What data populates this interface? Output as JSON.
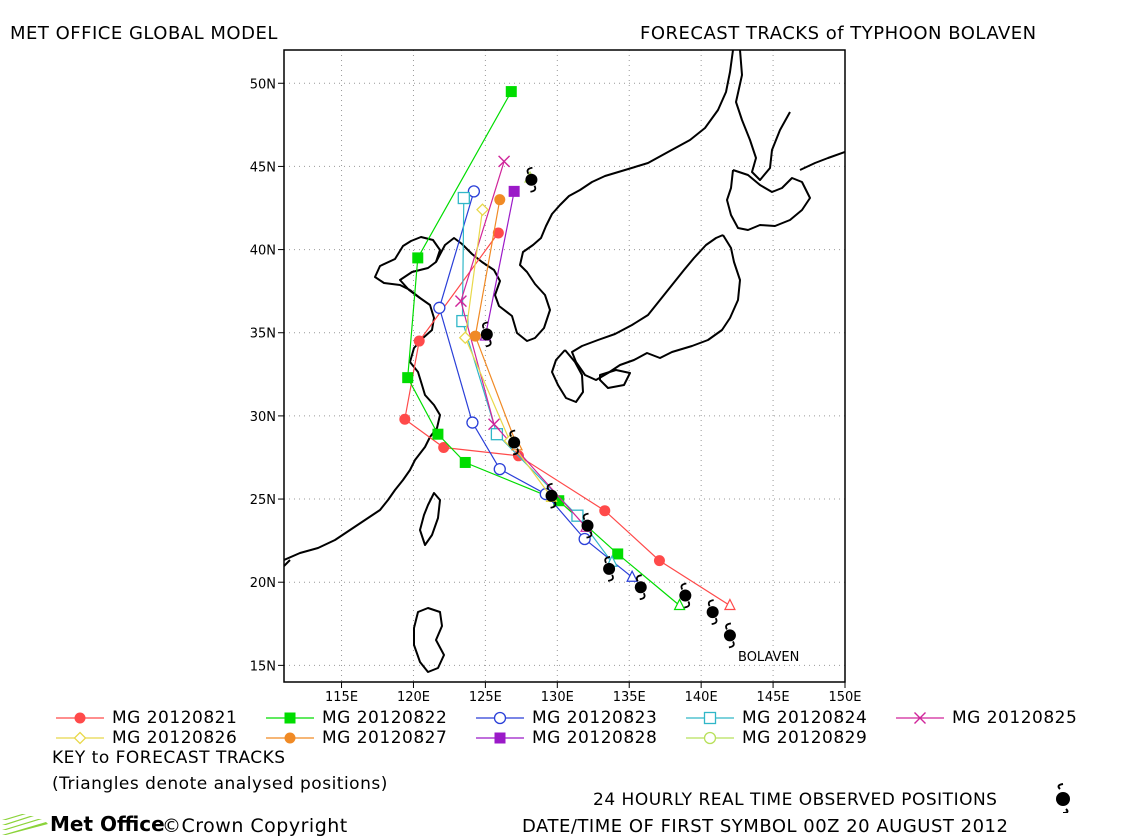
{
  "header": {
    "left_title": "MET OFFICE GLOBAL MODEL",
    "right_title": "FORECAST TRACKS of TYPHOON BOLAVEN"
  },
  "map": {
    "lon_range": [
      111,
      150
    ],
    "lat_range": [
      14,
      52
    ],
    "lon_ticks": [
      "115E",
      "120E",
      "125E",
      "130E",
      "135E",
      "140E",
      "145E",
      "150E"
    ],
    "lat_ticks": [
      "15N",
      "20N",
      "25N",
      "30N",
      "35N",
      "40N",
      "45N",
      "50N"
    ],
    "storm_label": "BOLAVEN",
    "observed_positions": [
      [
        142.0,
        16.8
      ],
      [
        140.8,
        18.2
      ],
      [
        138.9,
        19.2
      ],
      [
        135.8,
        19.7
      ],
      [
        133.6,
        20.8
      ],
      [
        132.1,
        23.4
      ],
      [
        129.6,
        25.2
      ],
      [
        127.0,
        28.4
      ],
      [
        125.1,
        34.9
      ],
      [
        128.2,
        44.2
      ]
    ]
  },
  "legend": {
    "items": [
      {
        "label": "MG 20120821",
        "color": "#ff4a4a",
        "marker": "filled-circle"
      },
      {
        "label": "MG 20120822",
        "color": "#00dd00",
        "marker": "filled-square"
      },
      {
        "label": "MG 20120823",
        "color": "#2a3fd8",
        "marker": "open-circle"
      },
      {
        "label": "MG 20120824",
        "color": "#30b7c8",
        "marker": "open-square"
      },
      {
        "label": "MG 20120825",
        "color": "#d0259a",
        "marker": "cross"
      },
      {
        "label": "MG 20120826",
        "color": "#e8d84a",
        "marker": "open-diamond"
      },
      {
        "label": "MG 20120827",
        "color": "#f08a25",
        "marker": "filled-circle"
      },
      {
        "label": "MG 20120828",
        "color": "#9b19c8",
        "marker": "filled-square"
      },
      {
        "label": "MG 20120829",
        "color": "#b8e05a",
        "marker": "open-circle"
      }
    ],
    "key_title": "KEY to FORECAST TRACKS",
    "note": "(Triangles denote analysed positions)"
  },
  "footer": {
    "observed_label": "24 HOURLY REAL TIME OBSERVED POSITIONS",
    "datetime_label": "DATE/TIME OF FIRST SYMBOL 00Z 20 AUGUST 2012",
    "logo_text": "Met Office",
    "copyright": "©Crown Copyright"
  },
  "tracks": [
    {
      "name": "MG 20120821",
      "color": "#ff4a4a",
      "marker": "filled-circle",
      "points": [
        [
          142.0,
          18.6
        ],
        [
          137.1,
          21.3
        ],
        [
          133.3,
          24.3
        ],
        [
          127.3,
          27.6
        ],
        [
          122.1,
          28.1
        ],
        [
          119.4,
          29.8
        ],
        [
          120.4,
          34.5
        ],
        [
          125.9,
          41.0
        ]
      ]
    },
    {
      "name": "MG 20120822",
      "color": "#00dd00",
      "marker": "filled-square",
      "points": [
        [
          138.5,
          18.6
        ],
        [
          134.2,
          21.7
        ],
        [
          130.1,
          24.9
        ],
        [
          123.6,
          27.2
        ],
        [
          121.7,
          28.9
        ],
        [
          119.6,
          32.3
        ],
        [
          120.3,
          39.5
        ],
        [
          126.8,
          49.5
        ]
      ]
    },
    {
      "name": "MG 20120823",
      "color": "#2a3fd8",
      "marker": "open-circle",
      "points": [
        [
          135.2,
          20.3
        ],
        [
          131.9,
          22.6
        ],
        [
          129.2,
          25.3
        ],
        [
          126.0,
          26.8
        ],
        [
          124.1,
          29.6
        ],
        [
          121.8,
          36.5
        ],
        [
          124.2,
          43.5
        ]
      ]
    },
    {
      "name": "MG 20120824",
      "color": "#30b7c8",
      "marker": "open-square",
      "points": [
        [
          133.8,
          21.2
        ],
        [
          131.4,
          24.0
        ],
        [
          125.8,
          28.9
        ],
        [
          123.4,
          35.7
        ],
        [
          123.5,
          43.1
        ]
      ]
    },
    {
      "name": "MG 20120825",
      "color": "#d0259a",
      "marker": "cross",
      "points": [
        [
          132.0,
          23.3
        ],
        [
          125.6,
          29.5
        ],
        [
          123.3,
          36.9
        ],
        [
          126.3,
          45.3
        ]
      ]
    },
    {
      "name": "MG 20120826",
      "color": "#e8d84a",
      "marker": "open-diamond",
      "points": [
        [
          129.6,
          25.1
        ],
        [
          126.7,
          28.5
        ],
        [
          123.6,
          34.7
        ],
        [
          124.8,
          42.4
        ]
      ]
    },
    {
      "name": "MG 20120827",
      "color": "#f08a25",
      "marker": "filled-circle",
      "points": [
        [
          127.2,
          28.2
        ],
        [
          124.3,
          34.8
        ],
        [
          126.0,
          43.0
        ]
      ]
    },
    {
      "name": "MG 20120828",
      "color": "#9b19c8",
      "marker": "filled-square",
      "points": [
        [
          125.0,
          34.8
        ],
        [
          127.0,
          43.5
        ]
      ]
    },
    {
      "name": "MG 20120829",
      "color": "#b8e05a",
      "marker": "open-circle",
      "points": [
        [
          128.1,
          44.3
        ]
      ]
    }
  ]
}
